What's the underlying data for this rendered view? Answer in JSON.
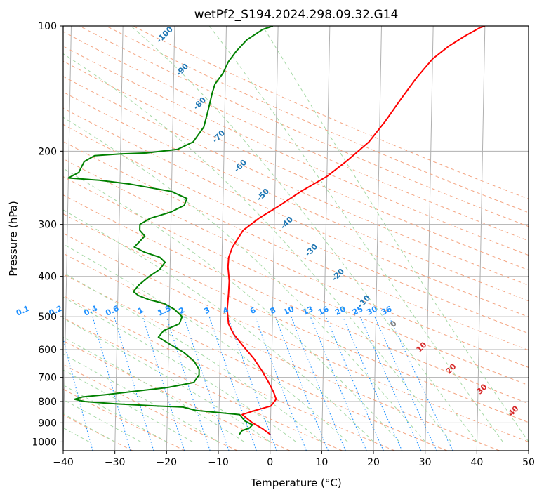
{
  "chart_data": {
    "type": "line",
    "title": "wetPf2_S194.2024.298.09.32.G14",
    "xlabel": "Temperature (°C)",
    "ylabel": "Pressure (hPa)",
    "xlim": [
      -40,
      50
    ],
    "ylim": [
      1050,
      100
    ],
    "y_scale": "log",
    "x_ticks": [
      -40,
      -30,
      -20,
      -10,
      0,
      10,
      20,
      30,
      40,
      50
    ],
    "y_ticks": [
      100,
      200,
      300,
      400,
      500,
      600,
      700,
      800,
      900,
      1000
    ],
    "grid": true,
    "series": [
      {
        "name": "",
        "color": "#ff0000",
        "points": [
          [
            0,
            960
          ],
          [
            -1.5,
            930
          ],
          [
            -3.5,
            900
          ],
          [
            -5.5,
            860
          ],
          [
            -3,
            840
          ],
          [
            0,
            820
          ],
          [
            1,
            790
          ],
          [
            0.5,
            760
          ],
          [
            -0.5,
            720
          ],
          [
            -2,
            670
          ],
          [
            -3.5,
            630
          ],
          [
            -5.5,
            590
          ],
          [
            -7.5,
            550
          ],
          [
            -8.5,
            520
          ],
          [
            -8.8,
            480
          ],
          [
            -8.6,
            440
          ],
          [
            -8.5,
            410
          ],
          [
            -8.8,
            380
          ],
          [
            -8.7,
            360
          ],
          [
            -8,
            340
          ],
          [
            -6,
            310
          ],
          [
            -3,
            290
          ],
          [
            1,
            270
          ],
          [
            5,
            250
          ],
          [
            10,
            230
          ],
          [
            14,
            210
          ],
          [
            18,
            190
          ],
          [
            21,
            170
          ],
          [
            24,
            150
          ],
          [
            27,
            133
          ],
          [
            30,
            120
          ],
          [
            33,
            112
          ],
          [
            36,
            106
          ],
          [
            39,
            101
          ],
          [
            40,
            100
          ]
        ]
      },
      {
        "name": "",
        "color": "#008000",
        "points": [
          [
            -6,
            960
          ],
          [
            -5.5,
            940
          ],
          [
            -4,
            925
          ],
          [
            -3.5,
            910
          ],
          [
            -5,
            890
          ],
          [
            -6,
            860
          ],
          [
            -14.5,
            840
          ],
          [
            -17,
            825
          ],
          [
            -22,
            820
          ],
          [
            -30,
            810
          ],
          [
            -36,
            800
          ],
          [
            -38,
            790
          ],
          [
            -36.5,
            780
          ],
          [
            -32,
            770
          ],
          [
            -26,
            755
          ],
          [
            -20,
            740
          ],
          [
            -15,
            720
          ],
          [
            -14,
            690
          ],
          [
            -14,
            670
          ],
          [
            -15,
            640
          ],
          [
            -17,
            610
          ],
          [
            -20,
            580
          ],
          [
            -22,
            560
          ],
          [
            -21,
            540
          ],
          [
            -18,
            520
          ],
          [
            -17.5,
            500
          ],
          [
            -19,
            480
          ],
          [
            -21,
            465
          ],
          [
            -24,
            455
          ],
          [
            -26,
            445
          ],
          [
            -27,
            435
          ],
          [
            -26,
            420
          ],
          [
            -24,
            400
          ],
          [
            -22,
            385
          ],
          [
            -21,
            370
          ],
          [
            -22,
            360
          ],
          [
            -25,
            350
          ],
          [
            -27,
            340
          ],
          [
            -26,
            330
          ],
          [
            -25,
            320
          ],
          [
            -26,
            310
          ],
          [
            -26,
            300
          ],
          [
            -24,
            290
          ],
          [
            -20,
            280
          ],
          [
            -17.5,
            270
          ],
          [
            -17,
            260
          ],
          [
            -20,
            250
          ],
          [
            -28,
            240
          ],
          [
            -34,
            235
          ],
          [
            -40,
            232
          ],
          [
            -38,
            225
          ],
          [
            -37,
            212
          ],
          [
            -35,
            205
          ],
          [
            -30,
            203
          ],
          [
            -25,
            202
          ],
          [
            -19,
            198
          ],
          [
            -16,
            190
          ],
          [
            -14,
            175
          ],
          [
            -13.5,
            165
          ],
          [
            -13,
            155
          ],
          [
            -12.5,
            145
          ],
          [
            -12,
            138
          ],
          [
            -10.5,
            130
          ],
          [
            -9.5,
            122
          ],
          [
            -8,
            115
          ],
          [
            -6,
            108
          ],
          [
            -3,
            102
          ],
          [
            -1,
            100
          ]
        ]
      }
    ],
    "mixing_ratio_labels": [
      "0.1",
      "0.2",
      "0.4",
      "0.6",
      "1",
      "1.5",
      "2",
      "3",
      "4",
      "6",
      "8",
      "10",
      "13",
      "16",
      "20",
      "25",
      "30",
      "36"
    ],
    "dry_adiabat_labels": [
      "-100",
      "-90",
      "-80",
      "-70",
      "-60",
      "-50",
      "-40",
      "-30",
      "-20",
      "-10"
    ],
    "moist_adiabat_labels": [
      "0",
      "10",
      "20",
      "30",
      "40"
    ],
    "colors": {
      "temperature": "#ff0000",
      "dewpoint": "#008000",
      "grid": "#b0b0b0",
      "dry_adiabat": "#f4a582",
      "moist_adiabat": "#a6d9a6",
      "mixing_ratio": "#1e90ff",
      "label_blue": "#1f77b4",
      "label_red": "#d62728"
    }
  }
}
